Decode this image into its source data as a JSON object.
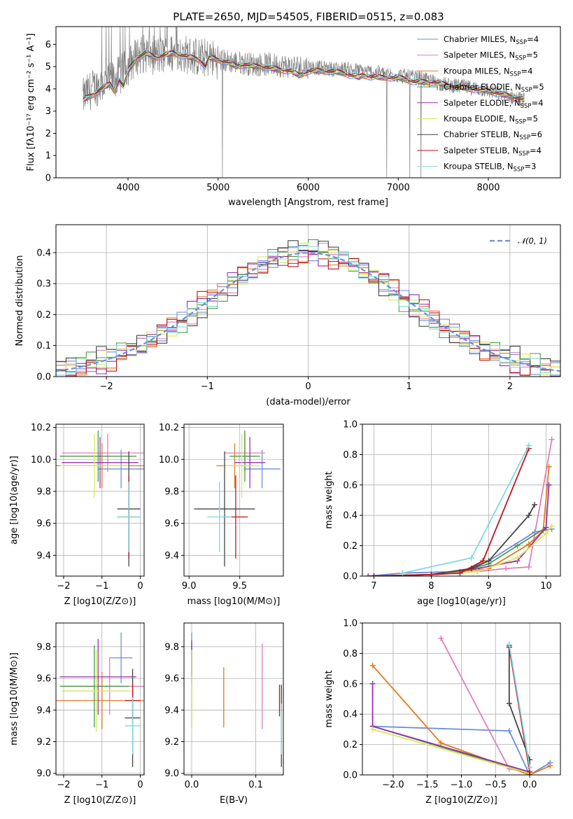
{
  "figure": {
    "title": "PLATE=2650, MJD=54505, FIBERID=0515, z=0.083"
  },
  "models": [
    {
      "name": "Chabrier MILES",
      "nssp": "4",
      "color": "#6a8fdc"
    },
    {
      "name": "Salpeter MILES",
      "nssp": "5",
      "color": "#e07fb8"
    },
    {
      "name": "Kroupa MILES",
      "nssp": "4",
      "color": "#e07b1f"
    },
    {
      "name": "Chabrier ELODIE",
      "nssp": "5",
      "color": "#4a9a4a"
    },
    {
      "name": "Salpeter ELODIE",
      "nssp": "4",
      "color": "#9a2fb0"
    },
    {
      "name": "Kroupa ELODIE",
      "nssp": "5",
      "color": "#d6e85a"
    },
    {
      "name": "Chabrier STELIB",
      "nssp": "6",
      "color": "#444444"
    },
    {
      "name": "Salpeter STELIB",
      "nssp": "4",
      "color": "#c0141a"
    },
    {
      "name": "Kroupa STELIB",
      "nssp": "3",
      "color": "#7fd8e0"
    }
  ],
  "chart_data": [
    {
      "id": "spectrum",
      "type": "line",
      "title": "PLATE=2650, MJD=54505, FIBERID=0515, z=0.083",
      "xlabel": "wavelength [Angstrom, rest frame]",
      "ylabel": "Flux [fλ10⁻¹⁷ erg cm⁻² s⁻¹ A⁻¹]",
      "xlim": [
        3200,
        8800
      ],
      "ylim": [
        0,
        6.8
      ],
      "xticks": [
        4000,
        5000,
        6000,
        7000,
        8000
      ],
      "yticks": [
        0,
        1,
        2,
        3,
        4,
        5,
        6
      ],
      "legend": "top-right",
      "grid": false,
      "data_color": "#808080",
      "data_envelope": {
        "x": [
          3500,
          3600,
          3700,
          3800,
          3900,
          4000,
          4100,
          4200,
          4300,
          4400,
          4500,
          4600,
          4700,
          4800,
          4900,
          5000,
          5200,
          5400,
          5600,
          5800,
          6000,
          6200,
          6400,
          6600,
          6800,
          7000,
          7200,
          7400,
          7500,
          7700,
          7900,
          8100,
          8300,
          8400
        ],
        "y": [
          3.6,
          4.0,
          4.2,
          4.3,
          4.6,
          5.0,
          5.5,
          5.6,
          5.5,
          5.5,
          5.6,
          5.6,
          5.5,
          5.4,
          5.4,
          5.3,
          5.2,
          5.1,
          5.1,
          5.0,
          5.0,
          4.9,
          4.9,
          4.8,
          4.7,
          4.6,
          4.5,
          4.3,
          4.2,
          4.1,
          4.0,
          3.8,
          3.6,
          3.5
        ]
      },
      "model_curve": {
        "x": [
          3500,
          3600,
          3700,
          3800,
          3850,
          3900,
          3950,
          4000,
          4100,
          4200,
          4300,
          4400,
          4500,
          4600,
          4700,
          4800,
          4860,
          4900,
          5000,
          5100,
          5200,
          5300,
          5400,
          5500,
          5600,
          5800,
          5900,
          6000,
          6200,
          6400,
          6563,
          6600,
          6800,
          7000,
          7200,
          7400,
          7600,
          7800,
          8000,
          8200,
          8400
        ],
        "y": [
          3.5,
          3.7,
          4.0,
          4.2,
          3.9,
          4.4,
          4.1,
          4.8,
          5.4,
          5.6,
          5.4,
          5.5,
          5.6,
          5.5,
          5.4,
          5.3,
          5.0,
          5.4,
          5.3,
          5.2,
          5.0,
          5.1,
          5.0,
          5.0,
          4.9,
          4.8,
          4.6,
          4.8,
          4.8,
          4.7,
          4.5,
          4.6,
          4.5,
          4.5,
          4.3,
          4.3,
          4.1,
          4.0,
          3.9,
          3.7,
          3.5
        ]
      }
    },
    {
      "id": "residuals",
      "type": "line",
      "xlabel": "(data-model)/error",
      "ylabel": "Normed distribution",
      "xlim": [
        -2.5,
        2.5
      ],
      "ylim": [
        0,
        0.49
      ],
      "xticks": [
        -2,
        -1,
        0,
        1,
        2
      ],
      "yticks": [
        0.0,
        0.1,
        0.2,
        0.3,
        0.4
      ],
      "grid": true,
      "legend": "top-right",
      "reference": {
        "name": "𝒩(0, 1)",
        "color": "#6a8fdc"
      },
      "bin_width": 0.1,
      "bin_start": -2.5,
      "histogram_offsets": [
        0.0,
        0.012,
        -0.01,
        0.02,
        -0.015,
        0.008,
        0.025,
        -0.02,
        0.005
      ],
      "noise_phase": [
        0.0,
        1.3,
        2.1,
        3.4,
        4.2,
        5.0,
        0.7,
        2.8,
        3.9
      ]
    },
    {
      "id": "age-vs-Z",
      "type": "scatter",
      "xlabel": "Z [log10(Z/Z⊙)]",
      "ylabel": "age [log10(age/yr)]",
      "xlim": [
        -2.2,
        0.1
      ],
      "ylim": [
        9.27,
        10.22
      ],
      "xticks": [
        -2,
        -1,
        0
      ],
      "yticks": [
        9.4,
        9.6,
        9.8,
        10.0,
        10.2
      ],
      "grid": true,
      "points": [
        {
          "x": -0.5,
          "y": 9.94,
          "xerr": 0.6,
          "yerr": 0.12
        },
        {
          "x": -0.85,
          "y": 10.04,
          "xerr": 1.2,
          "yerr": 0.12
        },
        {
          "x": -1.0,
          "y": 9.96,
          "xerr": 1.2,
          "yerr": 0.14
        },
        {
          "x": -1.1,
          "y": 10.02,
          "xerr": 1.0,
          "yerr": 0.16
        },
        {
          "x": -1.05,
          "y": 9.98,
          "xerr": 1.0,
          "yerr": 0.16
        },
        {
          "x": -1.2,
          "y": 9.96,
          "xerr": 0.9,
          "yerr": 0.2
        },
        {
          "x": -0.3,
          "y": 9.69,
          "xerr": 0.3,
          "yerr": 0.36
        },
        {
          "x": -0.3,
          "y": 9.64,
          "xerr": 0.3,
          "yerr": 0.26
        },
        {
          "x": -0.3,
          "y": 9.64,
          "xerr": 0.3,
          "yerr": 0.22
        }
      ]
    },
    {
      "id": "age-vs-mass",
      "type": "scatter",
      "xlabel": "mass [log10(M/M⊙)]",
      "xlim": [
        8.95,
        9.93
      ],
      "ylim": [
        9.27,
        10.22
      ],
      "xticks": [
        9.0,
        9.5
      ],
      "yticks": [
        9.4,
        9.6,
        9.8,
        10.0,
        10.2
      ],
      "grid": true,
      "points": [
        {
          "x": 9.72,
          "y": 9.94,
          "xerr": 0.18,
          "yerr": 0.12
        },
        {
          "x": 9.55,
          "y": 10.04,
          "xerr": 0.2,
          "yerr": 0.12
        },
        {
          "x": 9.45,
          "y": 9.96,
          "xerr": 0.18,
          "yerr": 0.14
        },
        {
          "x": 9.55,
          "y": 10.02,
          "xerr": 0.15,
          "yerr": 0.16
        },
        {
          "x": 9.6,
          "y": 9.98,
          "xerr": 0.15,
          "yerr": 0.16
        },
        {
          "x": 9.52,
          "y": 9.96,
          "xerr": 0.18,
          "yerr": 0.2
        },
        {
          "x": 9.35,
          "y": 9.69,
          "xerr": 0.3,
          "yerr": 0.36
        },
        {
          "x": 9.46,
          "y": 9.64,
          "xerr": 0.12,
          "yerr": 0.26
        },
        {
          "x": 9.3,
          "y": 9.64,
          "xerr": 0.12,
          "yerr": 0.22
        }
      ]
    },
    {
      "id": "massweight-vs-age",
      "type": "line",
      "xlabel": "age [log10(age/yr)]",
      "ylabel": "mass weight",
      "xlim": [
        6.8,
        10.25
      ],
      "ylim": [
        0,
        1.0
      ],
      "xticks": [
        7,
        8,
        9,
        10
      ],
      "yticks": [
        0.0,
        0.2,
        0.4,
        0.6,
        0.8,
        1.0
      ],
      "grid": true,
      "series": [
        {
          "x": [
            6.9,
            7.5,
            8.5,
            9.0,
            9.8,
            10.1
          ],
          "y": [
            0.0,
            0.02,
            0.03,
            0.1,
            0.29,
            0.31
          ]
        },
        {
          "x": [
            7.0,
            8.0,
            8.8,
            9.3,
            9.7,
            10.1
          ],
          "y": [
            0.0,
            0.01,
            0.03,
            0.05,
            0.06,
            0.9
          ]
        },
        {
          "x": [
            7.0,
            8.0,
            9.0,
            9.7,
            9.95,
            10.05
          ],
          "y": [
            0.0,
            0.01,
            0.05,
            0.21,
            0.3,
            0.72
          ]
        },
        {
          "x": [
            7.0,
            8.0,
            8.7,
            9.0,
            9.5,
            10.0
          ],
          "y": [
            0.0,
            0.01,
            0.05,
            0.08,
            0.2,
            0.32
          ]
        },
        {
          "x": [
            6.9,
            8.0,
            8.8,
            9.5,
            10.0,
            10.05
          ],
          "y": [
            0.0,
            0.01,
            0.05,
            0.1,
            0.32,
            0.6
          ]
        },
        {
          "x": [
            7.0,
            8.0,
            8.8,
            9.5,
            10.0,
            10.1
          ],
          "y": [
            0.0,
            0.01,
            0.03,
            0.12,
            0.28,
            0.33
          ]
        },
        {
          "x": [
            7.0,
            8.0,
            8.7,
            9.0,
            9.7,
            9.8
          ],
          "y": [
            0.0,
            0.01,
            0.05,
            0.1,
            0.4,
            0.47
          ]
        },
        {
          "x": [
            7.0,
            8.0,
            8.5,
            8.9,
            9.7
          ],
          "y": [
            0.0,
            0.01,
            0.02,
            0.1,
            0.84
          ]
        },
        {
          "x": [
            7.5,
            8.7,
            9.7
          ],
          "y": [
            0.02,
            0.12,
            0.86
          ]
        }
      ]
    },
    {
      "id": "mass-vs-Z",
      "type": "scatter",
      "xlabel": "Z [log10(Z/Z⊙)]",
      "ylabel": "mass [log10(M/M⊙)]",
      "xlim": [
        -2.2,
        0.1
      ],
      "ylim": [
        8.99,
        9.95
      ],
      "xticks": [
        -2,
        -1,
        0
      ],
      "yticks": [
        9.0,
        9.2,
        9.4,
        9.6,
        9.8
      ],
      "grid": true,
      "points": [
        {
          "x": -0.5,
          "y": 9.73,
          "xerr": 0.3,
          "yerr": 0.16
        },
        {
          "x": -0.8,
          "y": 9.55,
          "xerr": 1.2,
          "yerr": 0.18
        },
        {
          "x": -1.0,
          "y": 9.46,
          "xerr": 1.2,
          "yerr": 0.18
        },
        {
          "x": -1.2,
          "y": 9.55,
          "xerr": 0.9,
          "yerr": 0.26
        },
        {
          "x": -1.1,
          "y": 9.61,
          "xerr": 1.0,
          "yerr": 0.24
        },
        {
          "x": -1.15,
          "y": 9.52,
          "xerr": 0.9,
          "yerr": 0.26
        },
        {
          "x": -0.2,
          "y": 9.35,
          "xerr": 0.2,
          "yerr": 0.31
        },
        {
          "x": -0.2,
          "y": 9.46,
          "xerr": 0.2,
          "yerr": 0.11
        },
        {
          "x": -0.2,
          "y": 9.3,
          "xerr": 0.2,
          "yerr": 0.18
        }
      ]
    },
    {
      "id": "mass-vs-EBV",
      "type": "scatter",
      "xlabel": "E(B-V)",
      "xlim": [
        -0.012,
        0.143
      ],
      "ylim": [
        8.99,
        9.95
      ],
      "xticks": [
        0.0,
        0.1
      ],
      "yticks": [
        9.0,
        9.2,
        9.4,
        9.6,
        9.8
      ],
      "grid": true,
      "points": [
        {
          "x": 0.0,
          "y": 9.73,
          "yerr": 0.16
        },
        {
          "x": 0.11,
          "y": 9.55,
          "yerr": 0.27
        },
        {
          "x": 0.05,
          "y": 9.48,
          "yerr": 0.19
        },
        {
          "x": 0.0,
          "y": 9.55,
          "yerr": 0.26
        },
        {
          "x": 0.0,
          "y": 9.73,
          "yerr": 0.11
        },
        {
          "x": 0.0,
          "y": 9.52,
          "yerr": 0.26
        },
        {
          "x": 0.14,
          "y": 9.3,
          "yerr": 0.26
        },
        {
          "x": 0.137,
          "y": 9.46,
          "yerr": 0.1
        },
        {
          "x": 0.14,
          "y": 9.28,
          "yerr": 0.16
        }
      ]
    },
    {
      "id": "massweight-vs-Z",
      "type": "line",
      "xlabel": "Z [log10(Z/Z⊙)]",
      "ylabel": "mass weight",
      "xlim": [
        -2.45,
        0.45
      ],
      "ylim": [
        0,
        1.0
      ],
      "xticks": [
        -2.0,
        -1.5,
        -1.0,
        -0.5,
        0.0
      ],
      "yticks": [
        0.0,
        0.2,
        0.4,
        0.6,
        0.8,
        1.0
      ],
      "grid": true,
      "series": [
        {
          "x": [
            -2.3,
            -0.3,
            0.0,
            0.3
          ],
          "y": [
            0.32,
            0.29,
            0.0,
            0.08
          ]
        },
        {
          "x": [
            -1.3,
            -0.3,
            0.0
          ],
          "y": [
            0.9,
            0.04,
            0.02
          ]
        },
        {
          "x": [
            -2.3,
            -1.3,
            0.0,
            0.3
          ],
          "y": [
            0.72,
            0.21,
            0.0,
            0.06
          ]
        },
        {
          "x": [
            -2.3,
            0.0
          ],
          "y": [
            0.32,
            0.01
          ]
        },
        {
          "x": [
            -2.3,
            -2.3,
            0.0
          ],
          "y": [
            0.6,
            0.32,
            0.02
          ]
        },
        {
          "x": [
            -2.3,
            0.0
          ],
          "y": [
            0.3,
            0.01
          ]
        },
        {
          "x": [
            -0.3,
            -0.3,
            0.0,
            0.0
          ],
          "y": [
            0.85,
            0.47,
            0.1,
            0.0
          ]
        },
        {
          "x": [
            -0.3,
            0.0
          ],
          "y": [
            0.84,
            0.02
          ]
        },
        {
          "x": [
            -0.3,
            0.0
          ],
          "y": [
            0.86,
            0.05
          ]
        }
      ]
    }
  ]
}
